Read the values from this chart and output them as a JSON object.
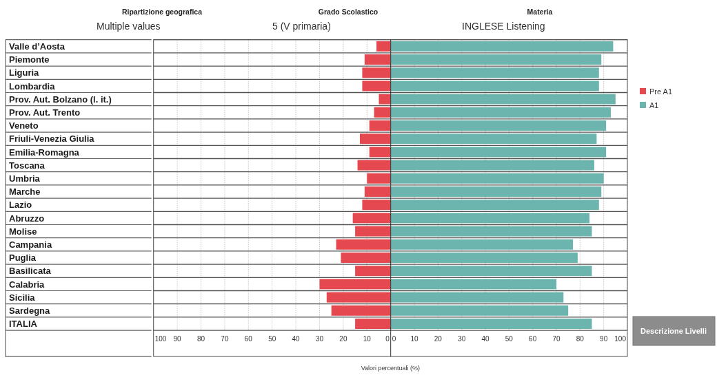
{
  "chart_data": [
    {
      "type": "bar",
      "orientation": "horizontal",
      "xlabel": "Valori percentuali (%)",
      "annotations": [
        "Ripartizione geografica",
        "Multiple values",
        "Grado Scolastico",
        "5 (V primaria)",
        "Materia",
        "INGLESE Listening",
        "Descrizione Livelli"
      ],
      "categories": [
        "Valle d’Aosta",
        "Piemonte",
        "Liguria",
        "Lombardia",
        "Prov. Aut. Bolzano (l. it.)",
        "Prov. Aut. Trento",
        "Veneto",
        "Friuli-Venezia Giulia",
        "Emilia-Romagna",
        "Toscana",
        "Umbria",
        "Marche",
        "Lazio",
        "Abruzzo",
        "Molise",
        "Campania",
        "Puglia",
        "Basilicata",
        "Calabria",
        "Sicilia",
        "Sardegna",
        "ITALIA"
      ],
      "series": [
        {
          "name": "Pre A1",
          "color": "#e5484e",
          "values": [
            6,
            11,
            12,
            12,
            5,
            7,
            9,
            13,
            9,
            14,
            10,
            11,
            12,
            16,
            15,
            23,
            21,
            15,
            30,
            27,
            25,
            15
          ]
        }
      ],
      "xlim": [
        100,
        0
      ],
      "xticks": [
        100,
        90,
        80,
        70,
        60,
        50,
        40,
        30,
        20,
        10,
        0
      ],
      "grid": "x",
      "legend": "right"
    },
    {
      "type": "bar",
      "orientation": "horizontal",
      "categories": [
        null,
        null,
        null,
        null,
        null,
        null,
        null,
        null,
        null,
        null,
        null,
        null,
        null,
        null,
        null,
        null,
        null,
        null,
        null,
        null,
        null,
        null
      ],
      "series": [
        {
          "name": "A1",
          "color": "#6cb5ae",
          "values": [
            94,
            89,
            88,
            88,
            95,
            93,
            91,
            87,
            91,
            86,
            90,
            89,
            88,
            84,
            85,
            77,
            79,
            85,
            70,
            73,
            75,
            85
          ]
        }
      ],
      "xlim": [
        0,
        100
      ],
      "xticks": [
        0,
        10,
        20,
        30,
        40,
        50,
        60,
        70,
        80,
        90,
        100
      ],
      "grid": "x",
      "legend": "right"
    }
  ]
}
